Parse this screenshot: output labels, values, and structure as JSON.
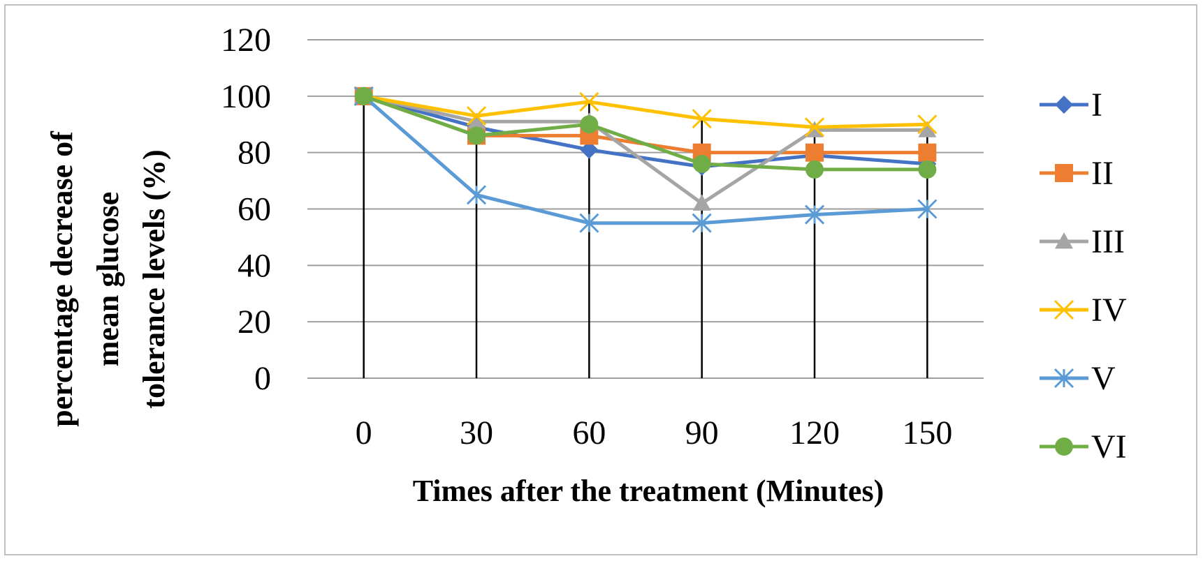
{
  "chart_data": {
    "type": "line",
    "title": "",
    "xlabel": "Times after the treatment  (Minutes)",
    "ylabel_lines": [
      "percentage decrease of",
      "mean glucose",
      "tolerance levels (%)"
    ],
    "categories": [
      "0",
      "30",
      "60",
      "90",
      "120",
      "150"
    ],
    "ylim": [
      0,
      120
    ],
    "yticks": [
      0,
      20,
      40,
      60,
      80,
      100,
      120
    ],
    "grid": "horizontal major gridlines",
    "drop_lines": true,
    "legend_position": "right",
    "series": [
      {
        "name": "I",
        "color": "#4472C4",
        "marker": "diamond",
        "values": [
          100,
          89,
          81,
          75,
          79,
          76
        ]
      },
      {
        "name": "II",
        "color": "#ED7D31",
        "marker": "square",
        "values": [
          100,
          86,
          86,
          80,
          80,
          80
        ]
      },
      {
        "name": "III",
        "color": "#A5A5A5",
        "marker": "triangle",
        "values": [
          100,
          91,
          91,
          62,
          88,
          88
        ]
      },
      {
        "name": "IV",
        "color": "#FFC000",
        "marker": "x",
        "values": [
          100,
          93,
          98,
          92,
          89,
          90
        ]
      },
      {
        "name": "V",
        "color": "#5B9BD5",
        "marker": "asterisk",
        "values": [
          100,
          65,
          55,
          55,
          58,
          60
        ]
      },
      {
        "name": "VI",
        "color": "#70AD47",
        "marker": "circle",
        "values": [
          100,
          86,
          90,
          76,
          74,
          74
        ]
      }
    ]
  }
}
